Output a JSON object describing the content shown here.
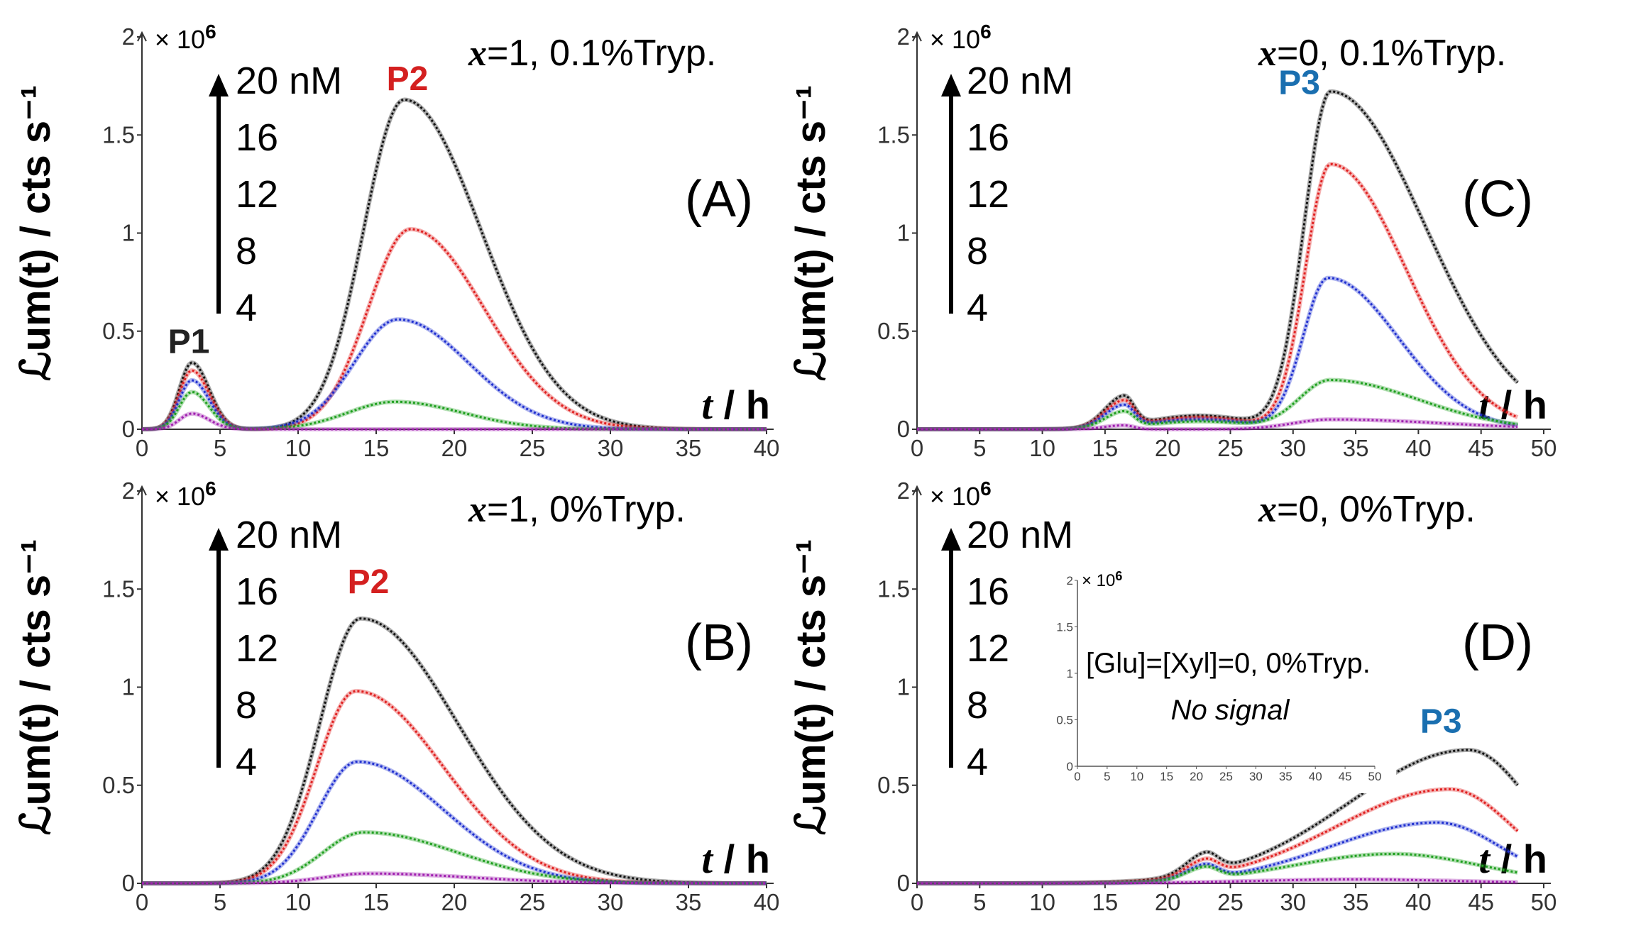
{
  "chart_data": [
    {
      "type": "line",
      "panel": "(A)",
      "condition_x": "x",
      "condition_rest": "=1, 0.1%Tryp.",
      "xlabel_t": "t",
      "xlabel_unit": " / h",
      "ylabel": "ℒum(t) / cts s⁻¹",
      "multiplier": "× 10",
      "multiplier_exp": "6",
      "xlim": [
        0,
        40
      ],
      "ylim": [
        0,
        2
      ],
      "xticks": [
        0,
        5,
        10,
        15,
        20,
        25,
        30,
        35,
        40
      ],
      "yticks": [
        "0",
        "0.5",
        "1",
        "1.5",
        "2"
      ],
      "concentration_arrow": [
        "20 nM",
        "16",
        "12",
        "8",
        "4"
      ],
      "peak_labels": [
        {
          "text": "P1",
          "x": 3.0,
          "y": 0.36,
          "color": "#222222"
        },
        {
          "text": "P2",
          "x": 17.0,
          "y": 1.7,
          "color": "#d42020"
        }
      ],
      "series": [
        {
          "name": "20 nM",
          "color": "#111111",
          "peaks": [
            {
              "mu": 3.2,
              "sl": 0.8,
              "sr": 1.1,
              "a": 0.34
            },
            {
              "mu": 16.8,
              "sl": 2.6,
              "sr": 4.9,
              "a": 1.68
            }
          ]
        },
        {
          "name": "16 nM",
          "color": "#e02020",
          "peaks": [
            {
              "mu": 3.2,
              "sl": 0.8,
              "sr": 1.1,
              "a": 0.3
            },
            {
              "mu": 17.2,
              "sl": 2.7,
              "sr": 4.7,
              "a": 1.02
            }
          ]
        },
        {
          "name": "12 nM",
          "color": "#2030d0",
          "peaks": [
            {
              "mu": 3.2,
              "sl": 0.8,
              "sr": 1.1,
              "a": 0.25
            },
            {
              "mu": 16.4,
              "sl": 2.8,
              "sr": 4.5,
              "a": 0.56
            }
          ]
        },
        {
          "name": "8 nM",
          "color": "#20a020",
          "peaks": [
            {
              "mu": 3.2,
              "sl": 0.8,
              "sr": 1.1,
              "a": 0.19
            },
            {
              "mu": 16.2,
              "sl": 3.0,
              "sr": 4.3,
              "a": 0.14
            }
          ]
        },
        {
          "name": "4 nM",
          "color": "#a020b0",
          "peaks": [
            {
              "mu": 3.2,
              "sl": 0.8,
              "sr": 1.1,
              "a": 0.08
            }
          ]
        }
      ]
    },
    {
      "type": "line",
      "panel": "(B)",
      "condition_x": "x",
      "condition_rest": "=1, 0%Tryp.",
      "xlabel_t": "t",
      "xlabel_unit": " / h",
      "ylabel": "ℒum(t) / cts s⁻¹",
      "multiplier": "× 10",
      "multiplier_exp": "6",
      "xlim": [
        0,
        40
      ],
      "ylim": [
        0,
        2
      ],
      "xticks": [
        0,
        5,
        10,
        15,
        20,
        25,
        30,
        35,
        40
      ],
      "yticks": [
        "0",
        "0.5",
        "1",
        "1.5",
        "2"
      ],
      "concentration_arrow": [
        "20 nM",
        "16",
        "12",
        "8",
        "4"
      ],
      "peak_labels": [
        {
          "text": "P2",
          "x": 14.5,
          "y": 1.45,
          "color": "#d42020"
        }
      ],
      "series": [
        {
          "name": "20 nM",
          "color": "#111111",
          "peaks": [
            {
              "mu": 14.0,
              "sl": 2.6,
              "sr": 6.2,
              "a": 1.35
            }
          ]
        },
        {
          "name": "16 nM",
          "color": "#e02020",
          "peaks": [
            {
              "mu": 13.7,
              "sl": 2.5,
              "sr": 5.6,
              "a": 0.98
            }
          ]
        },
        {
          "name": "12 nM",
          "color": "#2030d0",
          "peaks": [
            {
              "mu": 13.8,
              "sl": 2.5,
              "sr": 5.5,
              "a": 0.62
            }
          ]
        },
        {
          "name": "8 nM",
          "color": "#20a020",
          "peaks": [
            {
              "mu": 14.2,
              "sl": 2.6,
              "sr": 6.0,
              "a": 0.26
            }
          ]
        },
        {
          "name": "4 nM",
          "color": "#a020b0",
          "peaks": [
            {
              "mu": 14.5,
              "sl": 2.8,
              "sr": 6.5,
              "a": 0.05
            }
          ]
        }
      ]
    },
    {
      "type": "line",
      "panel": "(C)",
      "condition_x": "x",
      "condition_rest": "=0, 0.1%Tryp.",
      "xlabel_t": "t",
      "xlabel_unit": " / h",
      "ylabel": "ℒum(t) / cts s⁻¹",
      "multiplier": "× 10",
      "multiplier_exp": "6",
      "xlim": [
        0,
        50
      ],
      "ylim": [
        0,
        2
      ],
      "xticks": [
        0,
        5,
        10,
        15,
        20,
        25,
        30,
        35,
        40,
        45,
        50
      ],
      "yticks": [
        "0",
        "0.5",
        "1",
        "1.5",
        "2"
      ],
      "concentration_arrow": [
        "20 nM",
        "16",
        "12",
        "8",
        "4"
      ],
      "peak_labels": [
        {
          "text": "P3",
          "x": 30.5,
          "y": 1.68,
          "color": "#1a6fb0"
        }
      ],
      "series": [
        {
          "name": "20 nM",
          "color": "#111111",
          "peaks": [
            {
              "mu": 16.5,
              "sl": 1.5,
              "sr": 0.8,
              "a": 0.15
            },
            {
              "mu": 22.5,
              "sl": 4.0,
              "sr": 4.0,
              "a": 0.07
            },
            {
              "mu": 33.0,
              "sl": 2.1,
              "sr": 7.5,
              "a": 1.72
            }
          ]
        },
        {
          "name": "16 nM",
          "color": "#e02020",
          "peaks": [
            {
              "mu": 16.5,
              "sl": 1.5,
              "sr": 0.8,
              "a": 0.13
            },
            {
              "mu": 22.5,
              "sl": 4.0,
              "sr": 4.0,
              "a": 0.06
            },
            {
              "mu": 33.0,
              "sl": 2.0,
              "sr": 6.0,
              "a": 1.35
            }
          ]
        },
        {
          "name": "12 nM",
          "color": "#2030d0",
          "peaks": [
            {
              "mu": 16.5,
              "sl": 1.5,
              "sr": 0.8,
              "a": 0.11
            },
            {
              "mu": 22.5,
              "sl": 4.0,
              "sr": 4.0,
              "a": 0.05
            },
            {
              "mu": 32.8,
              "sl": 2.0,
              "sr": 5.6,
              "a": 0.77
            }
          ]
        },
        {
          "name": "8 nM",
          "color": "#20a020",
          "peaks": [
            {
              "mu": 16.5,
              "sl": 1.5,
              "sr": 0.8,
              "a": 0.08
            },
            {
              "mu": 22.5,
              "sl": 4.0,
              "sr": 4.0,
              "a": 0.04
            },
            {
              "mu": 33.0,
              "sl": 2.5,
              "sr": 7.0,
              "a": 0.25
            }
          ]
        },
        {
          "name": "4 nM",
          "color": "#a020b0",
          "peaks": [
            {
              "mu": 16.5,
              "sl": 1.5,
              "sr": 0.8,
              "a": 0.02
            },
            {
              "mu": 33.0,
              "sl": 3.0,
              "sr": 9.0,
              "a": 0.05
            }
          ]
        }
      ]
    },
    {
      "type": "line",
      "panel": "(D)",
      "condition_x": "x",
      "condition_rest": "=0, 0%Tryp.",
      "xlabel_t": "t",
      "xlabel_unit": " / h",
      "ylabel": "ℒum(t) / cts s⁻¹",
      "multiplier": "× 10",
      "multiplier_exp": "6",
      "xlim": [
        0,
        50
      ],
      "ylim": [
        0,
        2
      ],
      "xticks": [
        0,
        5,
        10,
        15,
        20,
        25,
        30,
        35,
        40,
        45,
        50
      ],
      "yticks": [
        "0",
        "0.5",
        "1",
        "1.5",
        "2"
      ],
      "concentration_arrow": [
        "20 nM",
        "16",
        "12",
        "8",
        "4"
      ],
      "peak_labels": [
        {
          "text": "P3",
          "x": 41.8,
          "y": 0.74,
          "color": "#1a6fb0"
        }
      ],
      "series": [
        {
          "name": "20 nM",
          "color": "#111111",
          "peaks": [
            {
              "mu": 23.0,
              "sl": 1.5,
              "sr": 1.0,
              "a": 0.1
            },
            {
              "mu": 44.0,
              "sl": 9.5,
              "sr": 5.0,
              "a": 0.68
            }
          ]
        },
        {
          "name": "16 nM",
          "color": "#e02020",
          "peaks": [
            {
              "mu": 23.0,
              "sl": 1.5,
              "sr": 1.0,
              "a": 0.08
            },
            {
              "mu": 42.5,
              "sl": 9.0,
              "sr": 5.0,
              "a": 0.48
            }
          ]
        },
        {
          "name": "12 nM",
          "color": "#2030d0",
          "peaks": [
            {
              "mu": 23.0,
              "sl": 1.5,
              "sr": 1.0,
              "a": 0.07
            },
            {
              "mu": 41.5,
              "sl": 8.5,
              "sr": 5.0,
              "a": 0.31
            }
          ]
        },
        {
          "name": "8 nM",
          "color": "#20a020",
          "peaks": [
            {
              "mu": 23.0,
              "sl": 1.5,
              "sr": 1.0,
              "a": 0.06
            },
            {
              "mu": 38.0,
              "sl": 8.0,
              "sr": 7.0,
              "a": 0.15
            }
          ]
        },
        {
          "name": "4 nM",
          "color": "#a020b0",
          "peaks": [
            {
              "mu": 35.0,
              "sl": 8.0,
              "sr": 8.0,
              "a": 0.02
            }
          ]
        }
      ],
      "inset": {
        "xlim": [
          0,
          50
        ],
        "ylim": [
          0,
          2
        ],
        "xticks": [
          0,
          5,
          10,
          15,
          20,
          25,
          30,
          35,
          40,
          45,
          50
        ],
        "yticks": [
          "0",
          "0.5",
          "1",
          "1.5",
          "2"
        ],
        "multiplier": "× 10",
        "multiplier_exp": "6",
        "text": "[Glu]=[Xyl]=0, 0%Tryp.",
        "note": "No signal"
      }
    }
  ]
}
